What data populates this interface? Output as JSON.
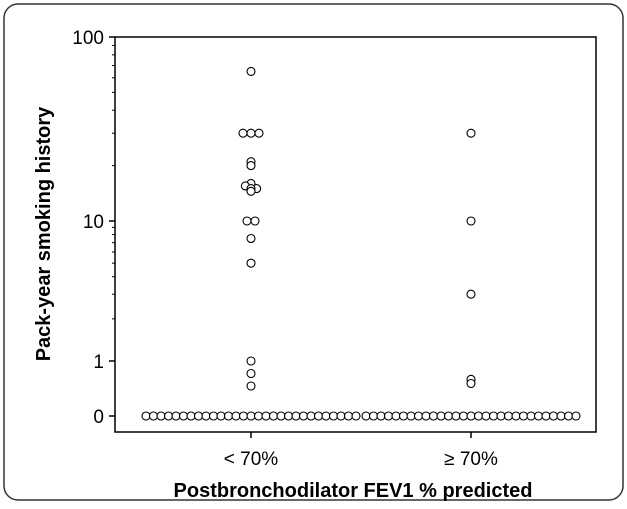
{
  "chart_data": {
    "type": "scatter",
    "title": "",
    "xlabel": "Postbronchodilator FEV1 % predicted",
    "ylabel": "Pack-year smoking history",
    "y_scale": "log (with 0 shown at the bottom)",
    "ylim": [
      0,
      100
    ],
    "y_ticks": [
      0,
      1,
      10,
      100
    ],
    "y_tick_labels": [
      "0",
      "1",
      "10",
      "100"
    ],
    "categories": [
      "< 70%",
      "≥ 70%"
    ],
    "grid": false,
    "series": [
      {
        "category": "< 70%",
        "nonzero_values": [
          65,
          30,
          30,
          30,
          21,
          20,
          16,
          15.5,
          15,
          15,
          14.5,
          10,
          10,
          7.5,
          5,
          1,
          0.85,
          0.7
        ],
        "nonzero_offsets": [
          0,
          -1,
          0,
          1,
          0,
          0,
          0,
          -0.7,
          0.7,
          0,
          0,
          -0.5,
          0.5,
          0,
          0,
          0,
          0,
          0
        ],
        "zero_count": 29
      },
      {
        "category": "≥ 70%",
        "nonzero_values": [
          30,
          10,
          3,
          0.78,
          0.73
        ],
        "nonzero_offsets": [
          0,
          0,
          0,
          0,
          0
        ],
        "zero_count": 29
      }
    ]
  }
}
